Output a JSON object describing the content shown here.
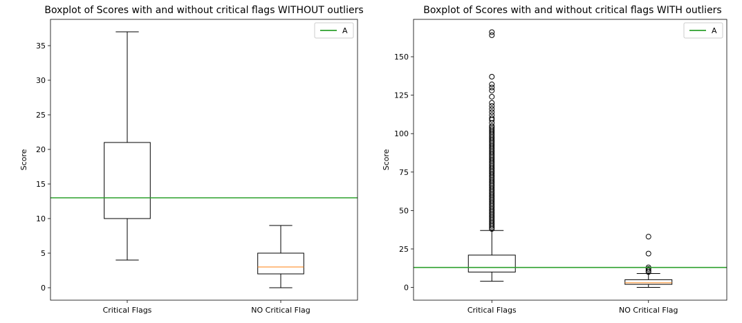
{
  "chart_data": [
    {
      "type": "boxplot",
      "title": "Boxplot of Scores with and without critical flags WITHOUT outliers",
      "xlabel": "",
      "ylabel": "Score",
      "ylim": [
        -1.8,
        38.8
      ],
      "yticks": [
        0,
        5,
        10,
        15,
        20,
        25,
        30,
        35
      ],
      "categories": [
        "Critical Flags",
        "NO Critical Flag"
      ],
      "boxes": [
        {
          "whisker_low": 4,
          "q1": 10,
          "median": 13,
          "q3": 21,
          "whisker_high": 37,
          "outliers": []
        },
        {
          "whisker_low": 0,
          "q1": 2,
          "median": 3,
          "q3": 5,
          "whisker_high": 9,
          "outliers": []
        }
      ],
      "hline": {
        "y": 13,
        "label": "A",
        "color": "#2ca02c"
      },
      "legend": {
        "position": "top-right",
        "entries": [
          "A"
        ]
      },
      "grid": false
    },
    {
      "type": "boxplot",
      "title": "Boxplot of Scores with and without critical flags WITH outliers",
      "xlabel": "",
      "ylabel": "Score",
      "ylim": [
        -8.3,
        174.3
      ],
      "yticks": [
        0,
        25,
        50,
        75,
        100,
        125,
        150
      ],
      "categories": [
        "Critical Flags",
        "NO Critical Flag"
      ],
      "boxes": [
        {
          "whisker_low": 4,
          "q1": 10,
          "median": 13,
          "q3": 21,
          "whisker_high": 37,
          "outliers": [
            38,
            39,
            40,
            41,
            42,
            43,
            44,
            45,
            46,
            47,
            48,
            49,
            50,
            51,
            52,
            53,
            54,
            55,
            56,
            57,
            58,
            59,
            60,
            61,
            62,
            63,
            64,
            65,
            66,
            67,
            68,
            69,
            70,
            71,
            72,
            73,
            74,
            75,
            76,
            77,
            78,
            79,
            80,
            81,
            82,
            83,
            84,
            85,
            86,
            87,
            88,
            89,
            90,
            91,
            92,
            93,
            94,
            95,
            96,
            97,
            98,
            99,
            100,
            101,
            102,
            103,
            104,
            105,
            107,
            109,
            110,
            112,
            114,
            116,
            118,
            120,
            124,
            128,
            130,
            132,
            137,
            164,
            166
          ]
        },
        {
          "whisker_low": 0,
          "q1": 2,
          "median": 3,
          "q3": 5,
          "whisker_high": 9,
          "outliers": [
            10,
            11,
            12,
            13,
            22,
            33
          ]
        }
      ],
      "hline": {
        "y": 13,
        "label": "A",
        "color": "#2ca02c"
      },
      "legend": {
        "position": "top-right",
        "entries": [
          "A"
        ]
      },
      "grid": false
    }
  ],
  "colors": {
    "median": "#ff7f0e",
    "box": "#000000",
    "hline": "#2ca02c"
  }
}
